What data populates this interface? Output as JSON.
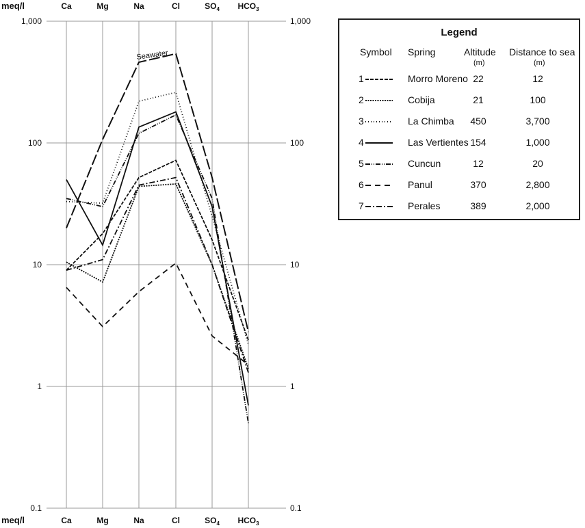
{
  "chart_data": {
    "type": "line",
    "yscale": "log",
    "ylim": [
      0.1,
      1000
    ],
    "ylabel": "meq/l",
    "categories": [
      "Ca",
      "Mg",
      "Na",
      "Cl",
      "SO4",
      "HCO3"
    ],
    "category_labels": [
      {
        "base": "Ca",
        "sub": ""
      },
      {
        "base": "Mg",
        "sub": ""
      },
      {
        "base": "Na",
        "sub": ""
      },
      {
        "base": "Cl",
        "sub": ""
      },
      {
        "base": "SO",
        "sub": "4"
      },
      {
        "base": "HCO",
        "sub": "3"
      }
    ],
    "yticks": [
      {
        "v": 1000,
        "label": "1,000"
      },
      {
        "v": 100,
        "label": "100"
      },
      {
        "v": 10,
        "label": "10"
      },
      {
        "v": 1,
        "label": "1"
      },
      {
        "v": 0.1,
        "label": "0.1"
      }
    ],
    "grid": true,
    "annotation": "Seawater",
    "series": [
      {
        "name": "Seawater",
        "dash": "16,4",
        "values": [
          20,
          107,
          460,
          540,
          52,
          2.8
        ]
      },
      {
        "name": "Morro Moreno",
        "symbol": "1",
        "dash": "5,2",
        "values": [
          9,
          18,
          52,
          72,
          16,
          2.4
        ]
      },
      {
        "name": "Cobija",
        "symbol": "2",
        "dash": "2,1.5",
        "values": [
          10.5,
          7.2,
          44,
          46,
          10,
          1.4
        ]
      },
      {
        "name": "La Chimba",
        "symbol": "3",
        "dash": "1,3",
        "values": [
          33,
          32,
          220,
          260,
          25,
          2.2
        ]
      },
      {
        "name": "Las Vertientes",
        "symbol": "4",
        "dash": "",
        "values": [
          50,
          14.5,
          135,
          180,
          30,
          0.7
        ]
      },
      {
        "name": "Cuncun",
        "symbol": "5",
        "dash": "7,2,1,2,1,2",
        "values": [
          35,
          30,
          120,
          170,
          35,
          0.5
        ]
      },
      {
        "name": "Panul",
        "symbol": "6",
        "dash": "8,6",
        "values": [
          6.5,
          3.1,
          6,
          10.3,
          2.6,
          1.5
        ]
      },
      {
        "name": "Perales",
        "symbol": "7",
        "dash": "8,3,2,3",
        "values": [
          9,
          11,
          45,
          52,
          10,
          1.3
        ]
      }
    ]
  },
  "legend": {
    "title": "Legend",
    "headers": {
      "symbol": "Symbol",
      "spring": "Spring",
      "altitude": "Altitude",
      "altitude_unit": "(m)",
      "distance": "Distance to sea",
      "distance_unit": "(m)"
    },
    "rows": [
      {
        "symbol": "1",
        "spring": "Morro Moreno",
        "altitude": "22",
        "distance": "12",
        "dash": "5,2"
      },
      {
        "symbol": "2",
        "spring": "Cobija",
        "altitude": "21",
        "distance": "100",
        "dash": "2,1.5"
      },
      {
        "symbol": "3",
        "spring": "La Chimba",
        "altitude": "450",
        "distance": "3,700",
        "dash": "1,3"
      },
      {
        "symbol": "4",
        "spring": "Las Vertientes",
        "altitude": "154",
        "distance": "1,000",
        "dash": ""
      },
      {
        "symbol": "5",
        "spring": "Cuncun",
        "altitude": "12",
        "distance": "20",
        "dash": "7,2,1,2,1,2"
      },
      {
        "symbol": "6",
        "spring": "Panul",
        "altitude": "370",
        "distance": "2,800",
        "dash": "8,6"
      },
      {
        "symbol": "7",
        "spring": "Perales",
        "altitude": "389",
        "distance": "2,000",
        "dash": "8,3,2,3"
      }
    ]
  }
}
